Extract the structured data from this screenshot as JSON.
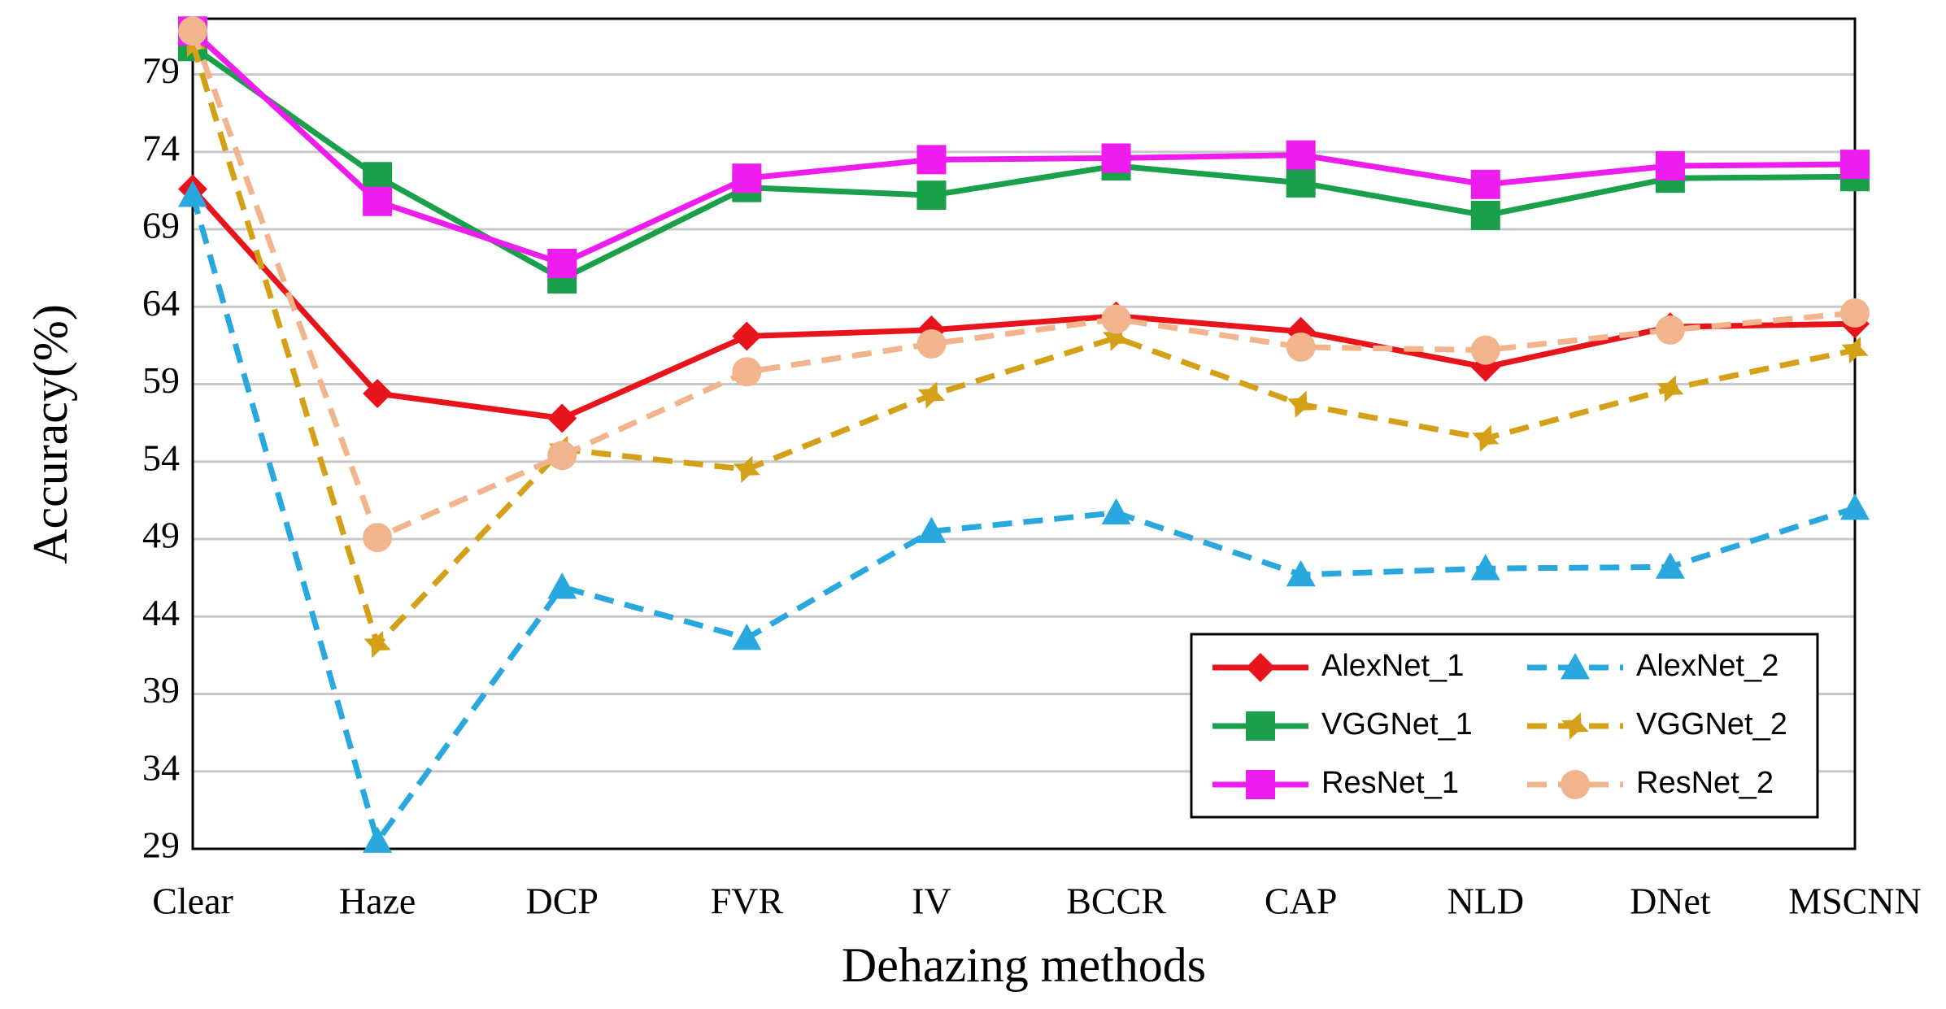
{
  "chart_data": {
    "type": "line",
    "x_label": "Dehazing methods",
    "y_label": "Accuracy(%)",
    "categories": [
      "Clear",
      "Haze",
      "DCP",
      "FVR",
      "IV",
      "BCCR",
      "CAP",
      "NLD",
      "DNet",
      "MSCNN"
    ],
    "ylim": [
      29,
      82.6
    ],
    "yticks": [
      29,
      34,
      39,
      44,
      49,
      54,
      59,
      64,
      69,
      74,
      79
    ],
    "grid": true,
    "legend": "lower right",
    "series": [
      {
        "name": "AlexNet_1",
        "color": "#e8141c",
        "marker": "diamond",
        "dashed": false,
        "values": [
          71.6,
          58.4,
          56.8,
          62.1,
          62.5,
          63.4,
          62.4,
          60.1,
          62.7,
          62.9
        ]
      },
      {
        "name": "AlexNet_2",
        "color": "#29a8e0",
        "marker": "triangle",
        "dashed": true,
        "values": [
          71.2,
          29.5,
          45.9,
          42.6,
          49.5,
          50.7,
          46.7,
          47.1,
          47.2,
          51.0
        ]
      },
      {
        "name": "VGGNet_1",
        "color": "#1aa04a",
        "marker": "square",
        "dashed": false,
        "values": [
          80.8,
          72.4,
          65.8,
          71.7,
          71.2,
          73.1,
          72.0,
          69.9,
          72.3,
          72.4
        ]
      },
      {
        "name": "VGGNet_2",
        "color": "#d4a017",
        "marker": "star",
        "dashed": true,
        "values": [
          81.0,
          42.2,
          54.8,
          53.5,
          58.3,
          62.0,
          57.7,
          55.5,
          58.7,
          61.2
        ]
      },
      {
        "name": "ResNet_1",
        "color": "#ee1cee",
        "marker": "square",
        "dashed": false,
        "values": [
          81.8,
          70.8,
          66.8,
          72.3,
          73.5,
          73.6,
          73.8,
          71.9,
          73.1,
          73.2
        ]
      },
      {
        "name": "ResNet_2",
        "color": "#f2b48c",
        "marker": "circle",
        "dashed": true,
        "values": [
          81.8,
          49.1,
          54.4,
          59.8,
          61.6,
          63.2,
          61.4,
          61.2,
          62.5,
          63.6
        ]
      }
    ]
  }
}
